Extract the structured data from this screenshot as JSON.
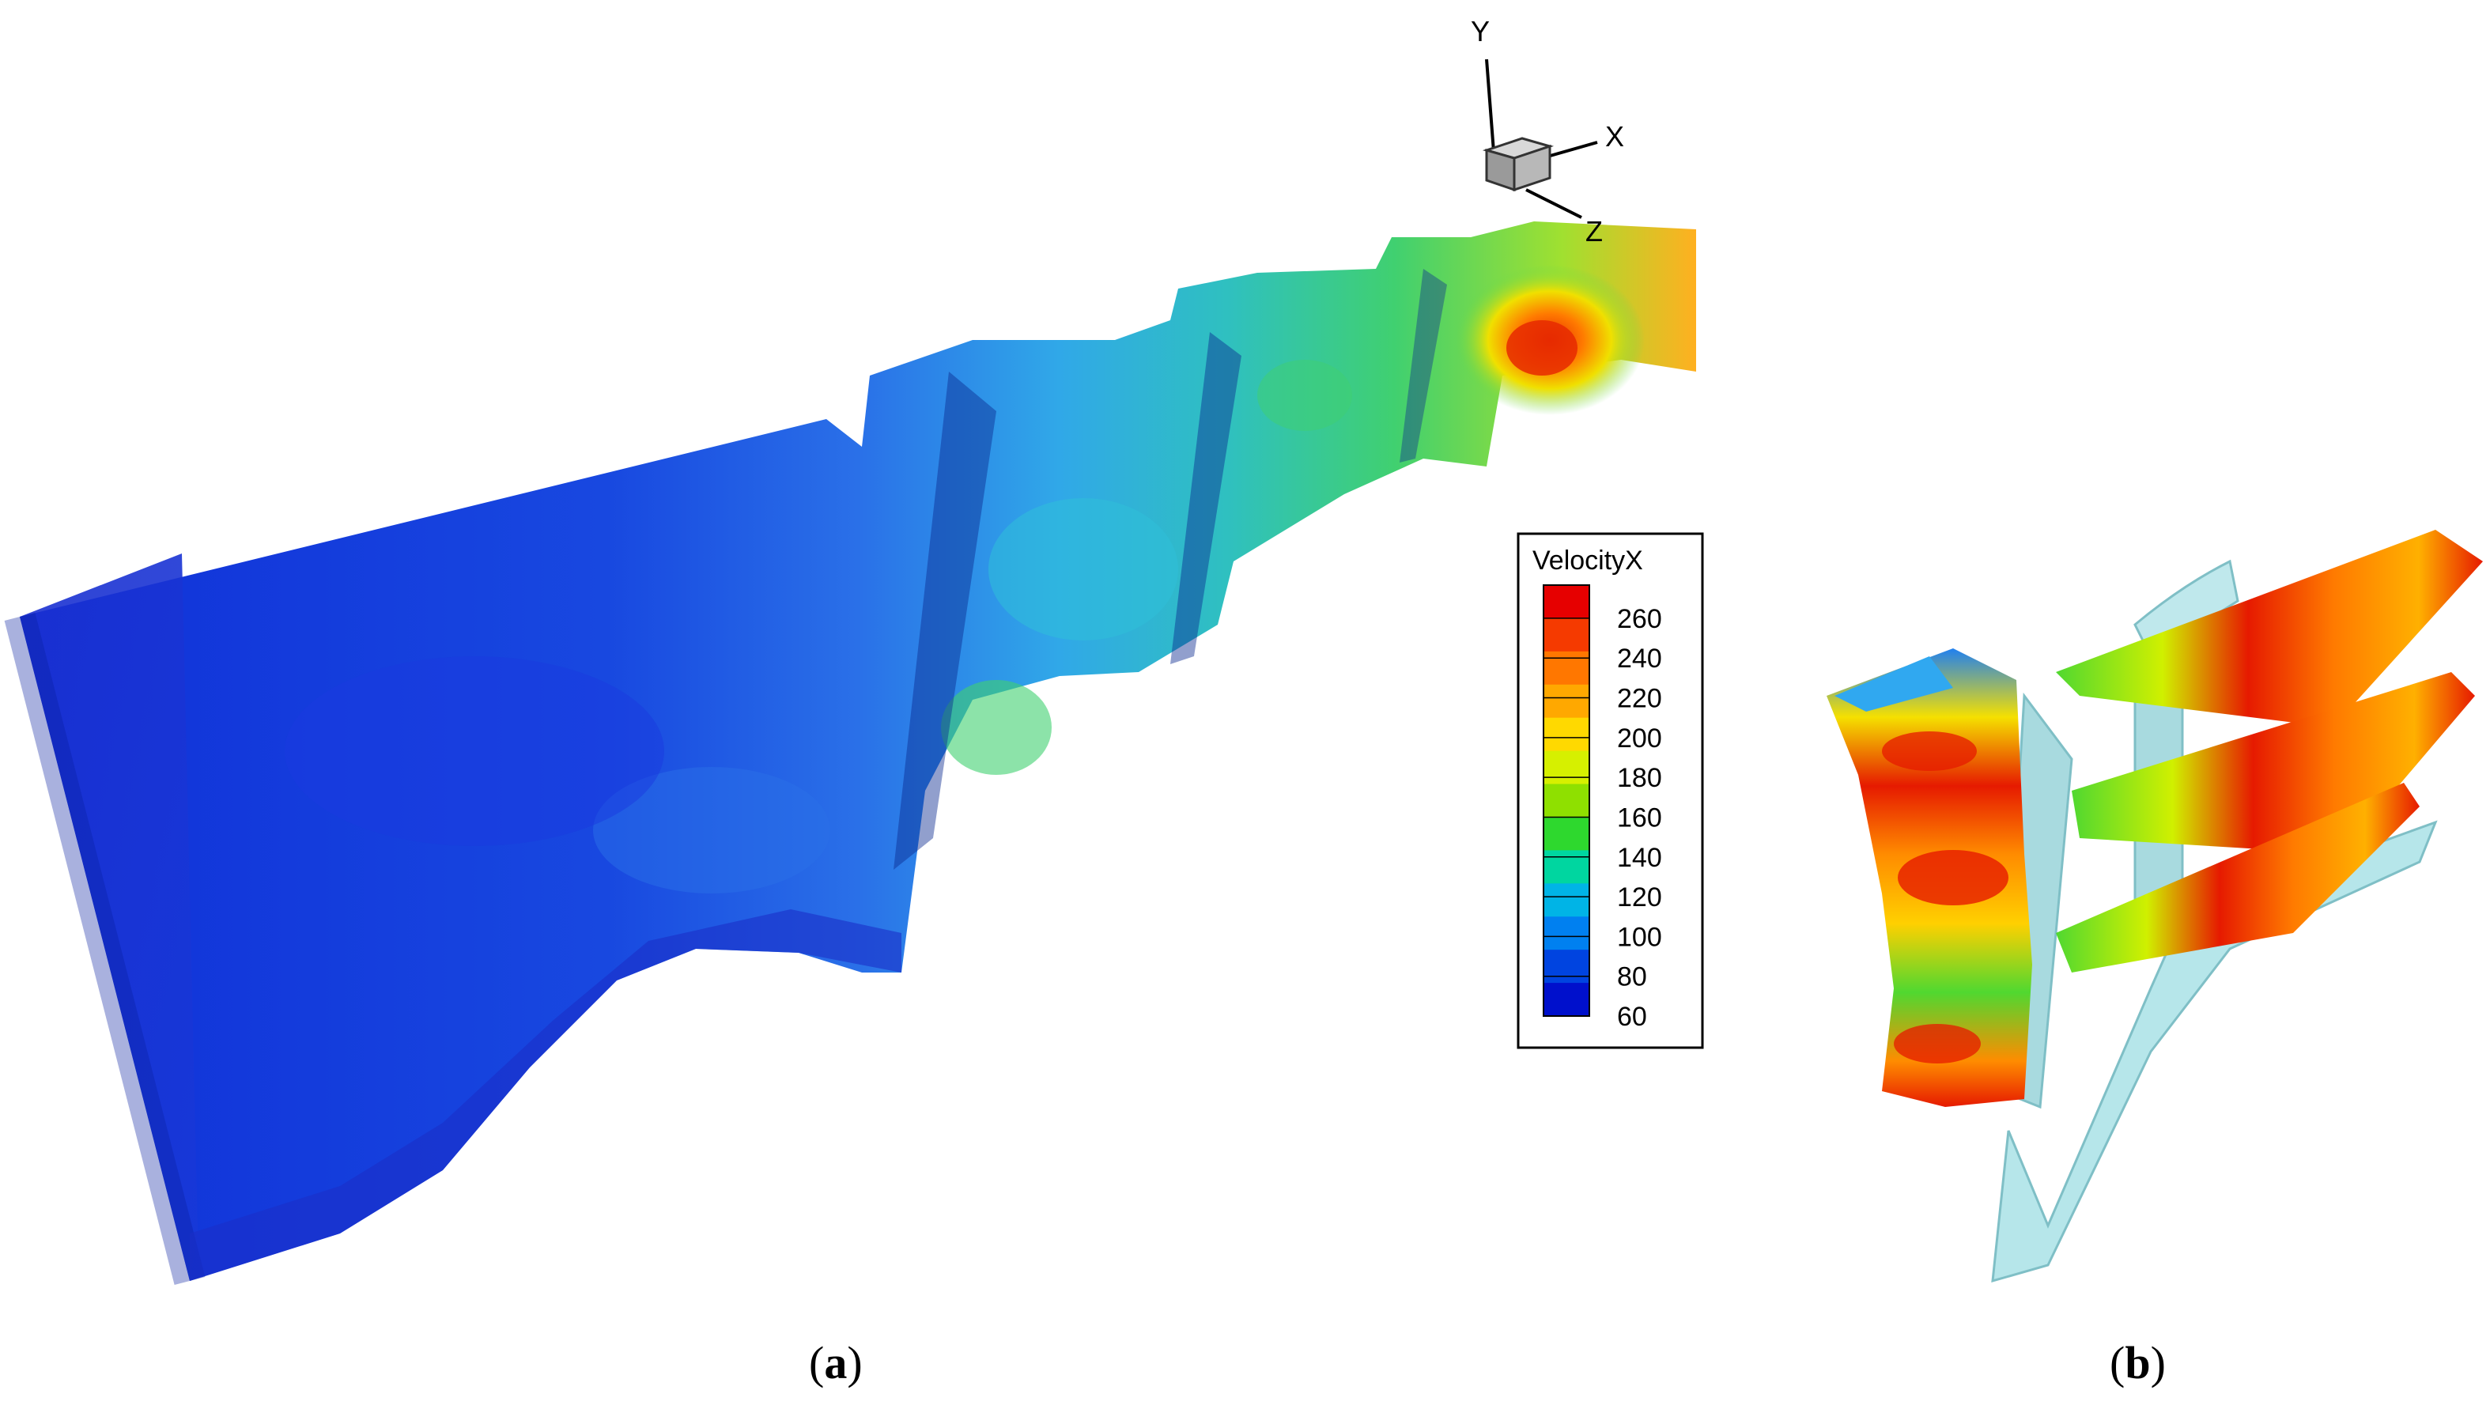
{
  "figure": {
    "panel_a": {
      "caption_open": "(",
      "caption_letter": "a",
      "caption_close": ")"
    },
    "panel_b": {
      "caption_open": "(",
      "caption_letter": "b",
      "caption_close": ")"
    },
    "axes_triad": {
      "x_label": "X",
      "y_label": "Y",
      "z_label": "Z"
    },
    "legend": {
      "title": "VelocityX",
      "levels": [
        "260",
        "240",
        "220",
        "200",
        "180",
        "160",
        "140",
        "120",
        "100",
        "80",
        "60"
      ],
      "colors": [
        "#e60000",
        "#f53a00",
        "#ff7700",
        "#ffa800",
        "#ffd900",
        "#d6f000",
        "#8fe000",
        "#2ed82e",
        "#00d6a0",
        "#00b4e6",
        "#0080f0",
        "#0044e0",
        "#0010cc"
      ]
    }
  }
}
